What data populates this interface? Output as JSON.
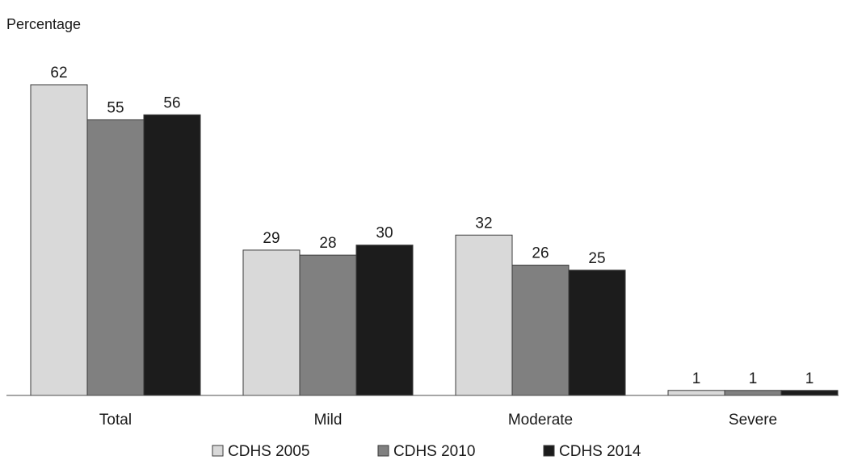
{
  "chart_data": {
    "type": "bar",
    "ylabel": "Percentage",
    "xlabel": "",
    "categories": [
      "Total",
      "Mild",
      "Moderate",
      "Severe"
    ],
    "series": [
      {
        "name": "CDHS 2005",
        "values": [
          62,
          29,
          32,
          1
        ],
        "color": "#d9d9d9"
      },
      {
        "name": "CDHS 2010",
        "values": [
          55,
          28,
          26,
          1
        ],
        "color": "#808080"
      },
      {
        "name": "CDHS 2014",
        "values": [
          56,
          30,
          25,
          1
        ],
        "color": "#1c1c1c"
      }
    ],
    "ylim": [
      0,
      62
    ],
    "grid": false,
    "legend_position": "bottom-center"
  }
}
